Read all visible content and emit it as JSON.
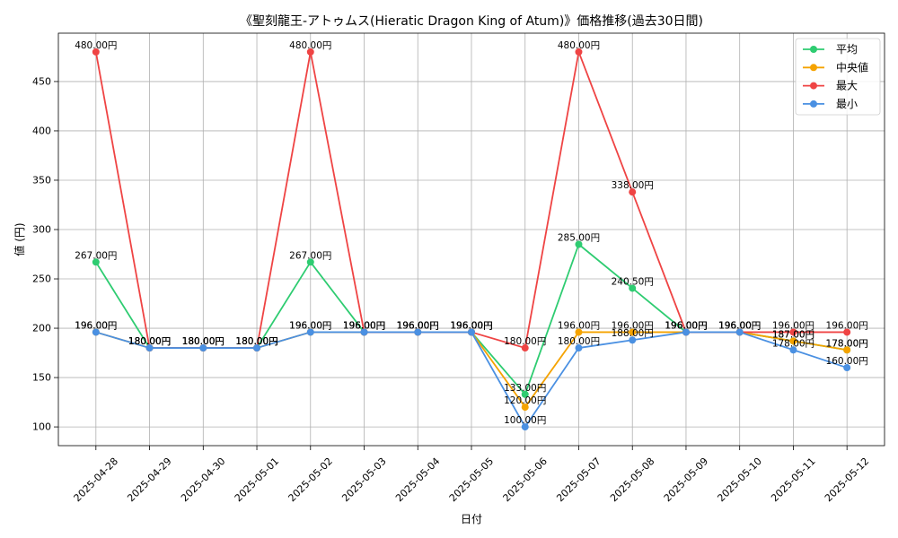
{
  "chart_data": {
    "type": "line",
    "title": "《聖刻龍王-アトゥムス(Hieratic Dragon King of Atum)》価格推移(過去30日間)",
    "xlabel": "日付",
    "ylabel": "値 (円)",
    "categories": [
      "2025-04-28",
      "2025-04-29",
      "2025-04-30",
      "2025-05-01",
      "2025-05-02",
      "2025-05-03",
      "2025-05-04",
      "2025-05-05",
      "2025-05-06",
      "2025-05-07",
      "2025-05-08",
      "2025-05-09",
      "2025-05-10",
      "2025-05-11",
      "2025-05-12"
    ],
    "yticks": [
      100,
      150,
      200,
      250,
      300,
      350,
      400,
      450
    ],
    "ylim": [
      81,
      499
    ],
    "grid": true,
    "legend_position": "top-right",
    "data_label_suffix": "円",
    "series": [
      {
        "name": "平均",
        "color": "#2ecc71",
        "values": [
          267,
          180,
          180,
          180,
          267,
          196,
          196,
          196,
          133,
          285,
          240.5,
          196,
          196,
          187,
          178
        ]
      },
      {
        "name": "中央値",
        "color": "#f5a300",
        "values": [
          196,
          180,
          180,
          180,
          196,
          196,
          196,
          196,
          120,
          196,
          196,
          196,
          196,
          187,
          178
        ]
      },
      {
        "name": "最大",
        "color": "#ef4444",
        "values": [
          480,
          180,
          180,
          180,
          480,
          196,
          196,
          196,
          180,
          480,
          338,
          196,
          196,
          196,
          196
        ]
      },
      {
        "name": "最小",
        "color": "#4a90e2",
        "values": [
          196,
          180,
          180,
          180,
          196,
          196,
          196,
          196,
          100,
          180,
          188,
          196,
          196,
          178,
          160
        ]
      }
    ]
  }
}
